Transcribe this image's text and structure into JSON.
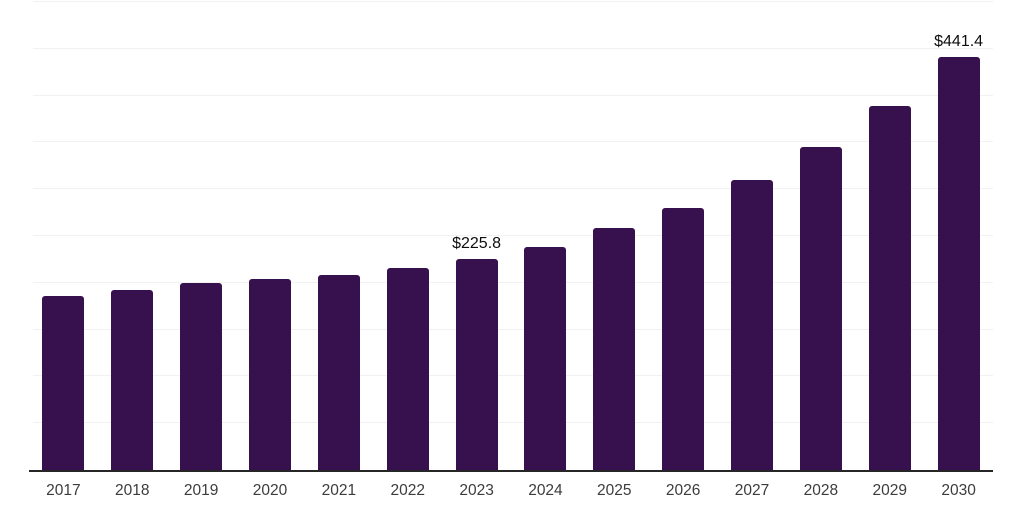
{
  "chart_data": {
    "type": "bar",
    "categories": [
      "2017",
      "2018",
      "2019",
      "2020",
      "2021",
      "2022",
      "2023",
      "2024",
      "2025",
      "2026",
      "2027",
      "2028",
      "2029",
      "2030"
    ],
    "values": [
      185.9,
      192.3,
      199.7,
      204.0,
      208.3,
      215.7,
      225.8,
      238.1,
      258.4,
      279.8,
      309.7,
      344.9,
      388.7,
      441.4
    ],
    "data_labels": [
      {
        "category": "2023",
        "text": "$225.8"
      },
      {
        "category": "2030",
        "text": "$441.4"
      }
    ],
    "title": "",
    "xlabel": "",
    "ylabel": "",
    "ylim": [
      0,
      500
    ],
    "gridline_step": 50,
    "grid": "horizontal-only",
    "legend": "none",
    "bar_color": "#36114E",
    "gridline_color": "#f1f1f3",
    "axis_line_color": "#262626",
    "tick_label_color": "#3c3c3c",
    "data_label_color": "#0e0e0e"
  }
}
